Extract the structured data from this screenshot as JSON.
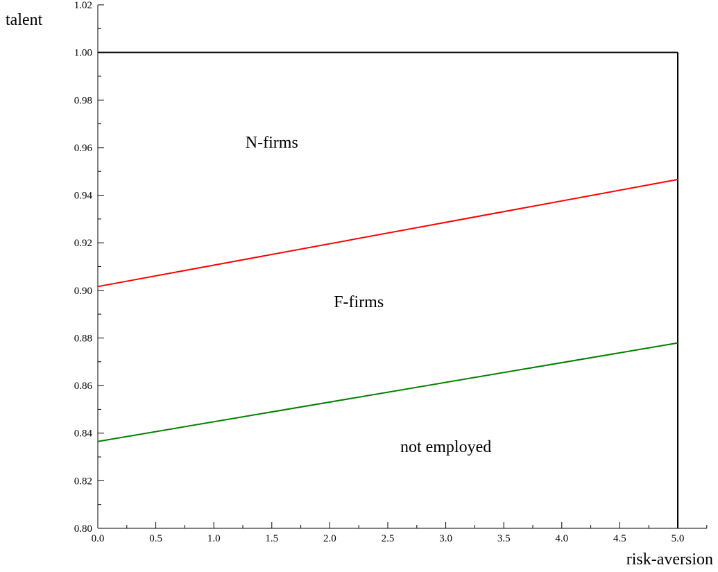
{
  "chart_data": {
    "type": "line",
    "title": "",
    "xlabel": "risk-aversion",
    "ylabel": "talent",
    "xlim": [
      0.0,
      5.25
    ],
    "ylim": [
      0.8,
      1.02
    ],
    "x_ticks": [
      "0.0",
      "0.5",
      "1.0",
      "1.5",
      "2.0",
      "2.5",
      "3.0",
      "3.5",
      "4.0",
      "4.5",
      "5.0"
    ],
    "y_ticks": [
      "0.80",
      "0.82",
      "0.84",
      "0.86",
      "0.88",
      "0.90",
      "0.92",
      "0.94",
      "0.96",
      "0.98",
      "1.00",
      "1.02"
    ],
    "grid": false,
    "series": [
      {
        "x": [
          0.0,
          5.0
        ],
        "y": [
          1.0,
          1.0
        ],
        "color": "#000000"
      },
      {
        "x": [
          5.0,
          5.0
        ],
        "y": [
          0.8,
          1.0
        ],
        "color": "#000000"
      },
      {
        "x": [
          0.0,
          5.0
        ],
        "y": [
          0.9016,
          0.9466
        ],
        "color": "#ff0000"
      },
      {
        "x": [
          0.0,
          5.0
        ],
        "y": [
          0.8365,
          0.8779
        ],
        "color": "#008000"
      }
    ],
    "annotations": [
      {
        "text": "N-firms",
        "x": 1.5,
        "y": 0.96
      },
      {
        "text": "F-firms",
        "x": 2.25,
        "y": 0.893
      },
      {
        "text": "not employed",
        "x": 3.0,
        "y": 0.832
      }
    ]
  }
}
